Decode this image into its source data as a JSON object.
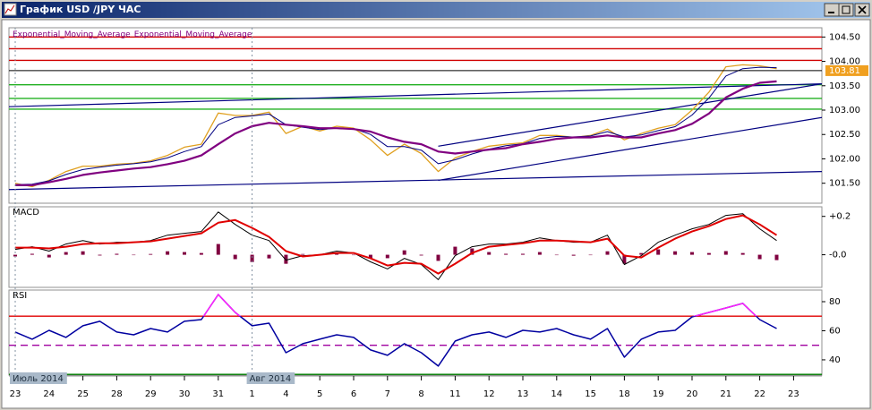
{
  "window": {
    "title": "График USD /JPY ЧАС"
  },
  "chart_data": [
    {
      "type": "line",
      "categories": [
        "23",
        null,
        "24",
        null,
        "25",
        null,
        "28",
        null,
        "29",
        null,
        "30",
        null,
        "31",
        null,
        "1",
        null,
        "4",
        null,
        "5",
        null,
        "6",
        null,
        "7",
        null,
        "8",
        null,
        "11",
        null,
        "12",
        null,
        "13",
        null,
        "14",
        null,
        "15",
        null,
        "18",
        null,
        "19",
        null,
        "20",
        null,
        "21",
        null,
        "22",
        null,
        "23"
      ],
      "x_group_labels": [
        {
          "text": "Июль 2014",
          "at": 0
        },
        {
          "text": "Авг 2014",
          "at": 14
        }
      ],
      "series": [
        {
          "color": "#e0a020",
          "width": 1.3,
          "values": [
            101.5,
            101.43,
            101.56,
            101.74,
            101.85,
            101.85,
            101.89,
            101.91,
            101.96,
            102.07,
            102.24,
            102.3,
            102.94,
            102.89,
            102.89,
            102.96,
            102.52,
            102.67,
            102.57,
            102.67,
            102.63,
            102.39,
            102.07,
            102.3,
            102.11,
            101.74,
            102.02,
            102.15,
            102.26,
            102.3,
            102.33,
            102.48,
            102.48,
            102.44,
            102.48,
            102.61,
            102.39,
            102.52,
            102.63,
            102.7,
            103.0,
            103.37,
            103.89,
            103.93,
            103.91,
            103.85,
            null
          ]
        },
        {
          "name": "Exponential_Moving_Average",
          "color": "#000080",
          "width": 1,
          "values": [
            101.47,
            101.48,
            101.55,
            101.68,
            101.78,
            101.83,
            101.87,
            101.9,
            101.94,
            102.02,
            102.15,
            102.25,
            102.7,
            102.85,
            102.88,
            102.92,
            102.7,
            102.65,
            102.6,
            102.63,
            102.62,
            102.5,
            102.25,
            102.25,
            102.18,
            101.9,
            101.98,
            102.1,
            102.2,
            102.27,
            102.31,
            102.42,
            102.46,
            102.45,
            102.47,
            102.56,
            102.45,
            102.49,
            102.58,
            102.66,
            102.9,
            103.25,
            103.7,
            103.85,
            103.88,
            103.87,
            null
          ]
        },
        {
          "name": "Exponential_Moving_Average",
          "color": "#800080",
          "width": 2.2,
          "values": [
            101.46,
            101.46,
            101.52,
            101.59,
            101.67,
            101.72,
            101.76,
            101.8,
            101.83,
            101.89,
            101.96,
            102.07,
            102.3,
            102.52,
            102.67,
            102.74,
            102.7,
            102.67,
            102.63,
            102.63,
            102.61,
            102.56,
            102.44,
            102.35,
            102.3,
            102.15,
            102.11,
            102.15,
            102.19,
            102.22,
            102.3,
            102.35,
            102.41,
            102.44,
            102.44,
            102.48,
            102.44,
            102.44,
            102.52,
            102.59,
            102.72,
            102.93,
            103.26,
            103.44,
            103.56,
            103.59,
            null
          ]
        }
      ],
      "ylim": [
        101.09,
        104.69
      ],
      "yticks": [
        {
          "value": 101.5,
          "label": "101.50"
        },
        {
          "value": 102,
          "label": "102.00"
        },
        {
          "value": 102.5,
          "label": "102.50"
        },
        {
          "value": 103,
          "label": "103.00"
        },
        {
          "value": 103.5,
          "label": "103.50"
        },
        {
          "value": 104,
          "label": "104.00"
        },
        {
          "value": 104.5,
          "label": "104.50"
        }
      ],
      "last_price": 103.81,
      "last_price_color": "#f0a020",
      "levels": [
        {
          "value": 104.5,
          "color": "#d00000"
        },
        {
          "value": 104.26,
          "color": "#d00000"
        },
        {
          "value": 104.02,
          "color": "#d00000"
        },
        {
          "value": 103.52,
          "color": "#20b020"
        },
        {
          "value": 103.24,
          "color": "#20b020"
        },
        {
          "value": 103.02,
          "color": "#20b020"
        }
      ],
      "trendlines": [
        {
          "color": "#000080",
          "x": [
            -0.4,
            47.7
          ],
          "y": [
            103.07,
            103.54
          ]
        },
        {
          "color": "#000080",
          "x": [
            -0.4,
            47.7
          ],
          "y": [
            101.37,
            101.74
          ]
        },
        {
          "color": "#000080",
          "x": [
            25,
            47.7
          ],
          "y": [
            102.26,
            103.54
          ]
        },
        {
          "color": "#000080",
          "x": [
            25,
            47.7
          ],
          "y": [
            101.56,
            102.85
          ]
        }
      ]
    },
    {
      "type": "line",
      "title": "MACD",
      "series": [
        {
          "kind": "bar",
          "color": "#800040",
          "values": [
            -0.009,
            0.005,
            -0.014,
            0.014,
            0.018,
            -0.004,
            0.005,
            0,
            0.004,
            0.018,
            0.014,
            0.009,
            0.056,
            -0.023,
            -0.038,
            -0.019,
            -0.047,
            0.004,
            0,
            0.01,
            0,
            -0.018,
            -0.018,
            0.023,
            -0.004,
            -0.032,
            0.042,
            0.033,
            0.014,
            0.005,
            0.005,
            0.014,
            0,
            -0.005,
            0,
            0.018,
            -0.046,
            0.009,
            0.028,
            0.018,
            0.014,
            0.009,
            0.019,
            0.009,
            -0.023,
            -0.028,
            null
          ]
        },
        {
          "kind": "line",
          "color": "#000000",
          "width": 1,
          "values": [
            0.028,
            0.042,
            0.019,
            0.056,
            0.074,
            0.056,
            0.065,
            0.065,
            0.074,
            0.102,
            0.112,
            0.121,
            0.223,
            0.158,
            0.102,
            0.074,
            -0.028,
            -0.005,
            0,
            0.019,
            0.009,
            -0.037,
            -0.074,
            -0.019,
            -0.051,
            -0.13,
            -0.005,
            0.042,
            0.056,
            0.056,
            0.065,
            0.088,
            0.074,
            0.065,
            0.065,
            0.102,
            -0.051,
            -0.005,
            0.065,
            0.102,
            0.135,
            0.158,
            0.205,
            0.214,
            0.135,
            0.074,
            null
          ]
        },
        {
          "kind": "line",
          "color": "#e00000",
          "width": 2,
          "values": [
            0.037,
            0.037,
            0.033,
            0.042,
            0.056,
            0.06,
            0.06,
            0.065,
            0.07,
            0.084,
            0.098,
            0.112,
            0.167,
            0.181,
            0.14,
            0.093,
            0.019,
            -0.009,
            0,
            0.009,
            0.009,
            -0.019,
            -0.056,
            -0.042,
            -0.047,
            -0.098,
            -0.047,
            0.009,
            0.042,
            0.051,
            0.06,
            0.074,
            0.074,
            0.07,
            0.065,
            0.084,
            -0.005,
            -0.014,
            0.037,
            0.084,
            0.121,
            0.149,
            0.186,
            0.205,
            0.158,
            0.102,
            null
          ]
        }
      ],
      "ylim": [
        -0.17,
        0.25
      ],
      "yticks": [
        {
          "value": 0.2,
          "label": "+0.2"
        },
        {
          "value": 0,
          "label": "-0.0"
        }
      ]
    },
    {
      "type": "line",
      "title": "RSI",
      "series": [
        {
          "kind": "line",
          "color": "#0000a0",
          "width": 1.5,
          "overbought_color": "#ff20ff",
          "values": [
            59.1,
            54.2,
            60.3,
            55.4,
            63.4,
            66.5,
            59.1,
            57.2,
            61.5,
            59.1,
            66.5,
            67.7,
            84.9,
            72.6,
            63.4,
            65.2,
            44.9,
            51.1,
            54.2,
            57.2,
            55.4,
            46.8,
            43.1,
            51.1,
            44.9,
            35.7,
            52.9,
            57.2,
            59.1,
            55.4,
            60.3,
            59.1,
            61.5,
            57.2,
            54.2,
            61.5,
            41.8,
            54.2,
            59.1,
            60.3,
            69.5,
            72.6,
            75.7,
            78.8,
            67.7,
            61.5,
            null
          ]
        }
      ],
      "ylim": [
        29.5,
        88
      ],
      "yticks": [
        40,
        60,
        80
      ],
      "levels": [
        {
          "value": 70,
          "color": "#e00000"
        },
        {
          "value": 50,
          "color": "#a000a0",
          "dashed": true
        },
        {
          "value": 30,
          "color": "#008000"
        }
      ]
    }
  ]
}
